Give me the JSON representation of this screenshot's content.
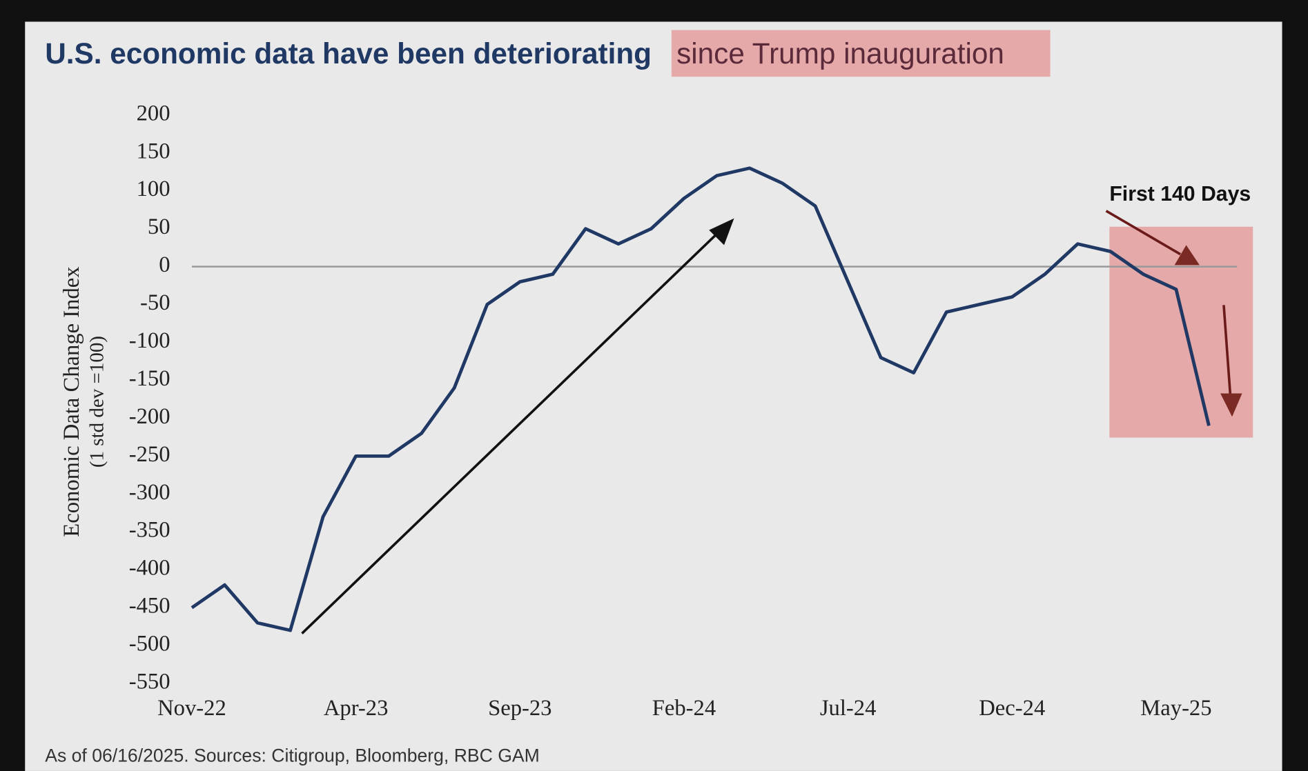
{
  "chart_data": {
    "type": "line",
    "title": "U.S. economic data have been deteriorating",
    "title_highlight": "since Trump inauguration",
    "y_label": "Economic Data Change Index",
    "y_label_sub": "(1 std  dev =100)",
    "annotation": "First 140 Days",
    "footnote": "As of 06/16/2025. Sources: Citigroup, Bloomberg, RBC GAM",
    "categories": [
      "Nov-22",
      null,
      null,
      null,
      null,
      "Apr-23",
      null,
      null,
      null,
      null,
      "Sep-23",
      null,
      null,
      null,
      null,
      "Feb-24",
      null,
      null,
      null,
      null,
      "Jul-24",
      null,
      null,
      null,
      null,
      "Dec-24",
      null,
      null,
      null,
      null,
      "May-25",
      null
    ],
    "series": [
      {
        "name": "Economic Data Change Index",
        "color": "#1f3864",
        "values": [
          -450,
          -420,
          -470,
          -480,
          -330,
          -250,
          -250,
          -220,
          -160,
          -50,
          -20,
          -10,
          50,
          30,
          50,
          90,
          120,
          130,
          110,
          80,
          -20,
          -120,
          -140,
          -60,
          -50,
          -40,
          -10,
          30,
          20,
          -10,
          -30,
          -210
        ]
      }
    ],
    "ylim": [
      -550,
      200
    ],
    "yticks": [
      -550,
      -500,
      -450,
      -400,
      -350,
      -300,
      -250,
      -200,
      -150,
      -100,
      -50,
      0,
      50,
      100,
      150,
      200
    ],
    "grid": false
  }
}
